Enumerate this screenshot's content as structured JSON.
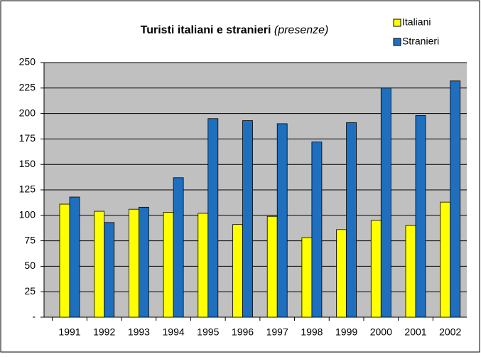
{
  "chart_data": {
    "type": "bar",
    "title": "Turisti italiani e stranieri",
    "subtitle": "(presenze)",
    "categories": [
      "1991",
      "1992",
      "1993",
      "1994",
      "1995",
      "1996",
      "1997",
      "1998",
      "1999",
      "2000",
      "2001",
      "2002"
    ],
    "series": [
      {
        "name": "Italiani",
        "color": "#ffff00",
        "values": [
          111,
          104,
          106,
          103,
          102,
          91,
          99,
          78,
          86,
          95,
          90,
          113
        ]
      },
      {
        "name": "Stranieri",
        "color": "#1f6fbf",
        "values": [
          118,
          93,
          108,
          137,
          195,
          193,
          190,
          172,
          191,
          225,
          198,
          232
        ]
      }
    ],
    "ylim": [
      0,
      250
    ],
    "yticks": [
      {
        "value": 0,
        "label": "-"
      },
      25,
      50,
      75,
      100,
      125,
      150,
      175,
      200,
      225,
      250
    ],
    "grid": true,
    "legend": "top-right"
  }
}
